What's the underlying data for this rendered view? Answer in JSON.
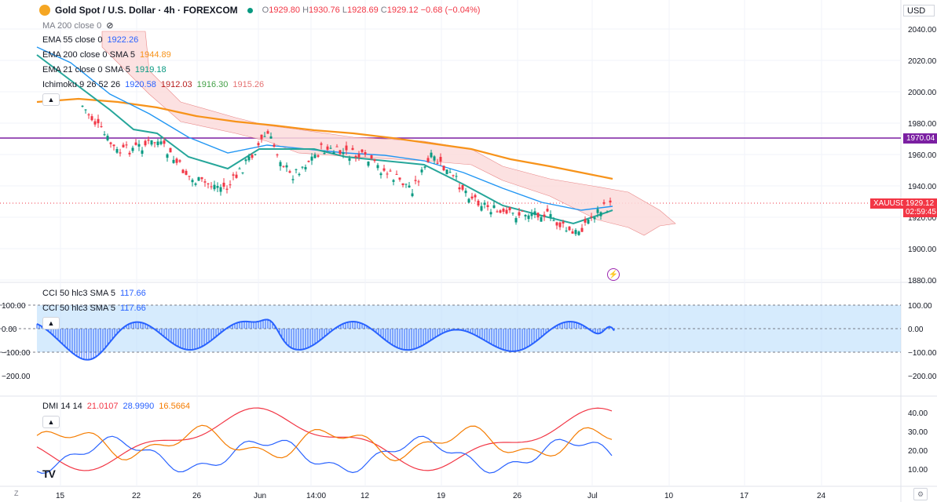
{
  "header": {
    "title": "Gold Spot / U.S. Dollar · 4h · FOREXCOM",
    "open_label": "O",
    "open": "1929.80",
    "high_label": "H",
    "high": "1930.76",
    "low_label": "L",
    "low": "1928.69",
    "close_label": "C",
    "close": "1929.12",
    "change": "−0.68 (−0.04%)"
  },
  "indicators": [
    {
      "name": "MA 200 close 0",
      "values": []
    },
    {
      "name": "EMA 55 close 0",
      "values": [
        {
          "v": "1922.26",
          "color": "#2962ff"
        }
      ]
    },
    {
      "name": "EMA 200 close 0 SMA 5",
      "values": [
        {
          "v": "1944.89",
          "color": "#f7931a"
        }
      ]
    },
    {
      "name": "EMA 21 close 0 SMA 5",
      "values": [
        {
          "v": "1919.18",
          "color": "#089981"
        }
      ]
    },
    {
      "name": "Ichimoku 9 26 52 26",
      "values": [
        {
          "v": "1920.58",
          "color": "#2962ff"
        },
        {
          "v": "1912.03",
          "color": "#b71c1c"
        },
        {
          "v": "1916.30",
          "color": "#43a047"
        },
        {
          "v": "1915.26",
          "color": "#e57373"
        }
      ]
    }
  ],
  "cci": {
    "label": "CCI 50 hlc3 SMA 5",
    "value": "117.66"
  },
  "dmi": {
    "label": "DMI 14 14",
    "v1": "21.0107",
    "v2": "28.9990",
    "v3": "16.5664",
    "c1": "#f23645",
    "c2": "#2962ff",
    "c3": "#f57c00"
  },
  "currency": "USD",
  "price_tags": {
    "hline": "1970.04",
    "symbol": "XAUUSD",
    "last": "1929.12",
    "countdown": "02:59:45"
  },
  "axes": {
    "main_ticks": [
      "2040.00",
      "2020.00",
      "2000.00",
      "1980.00",
      "1960.00",
      "1940.00",
      "1920.00",
      "1900.00",
      "1880.00"
    ],
    "cci_ticks": [
      "100.00",
      "0.00",
      "−100.00",
      "−200.00"
    ],
    "dmi_ticks": [
      "40.00",
      "30.00",
      "20.00",
      "10.00"
    ],
    "dates": [
      "15",
      "22",
      "26",
      "Jun",
      "14:00",
      "12",
      "19",
      "26",
      "Jul",
      "10",
      "17",
      "24"
    ]
  },
  "bottom": {
    "z": "Z",
    "logo": "TV"
  },
  "colors": {
    "accent": "#2962ff",
    "hline": "#7b1fa2",
    "ema200": "#f7931a",
    "ema21": "#089981",
    "cci_fill": "#bbdefb"
  }
}
